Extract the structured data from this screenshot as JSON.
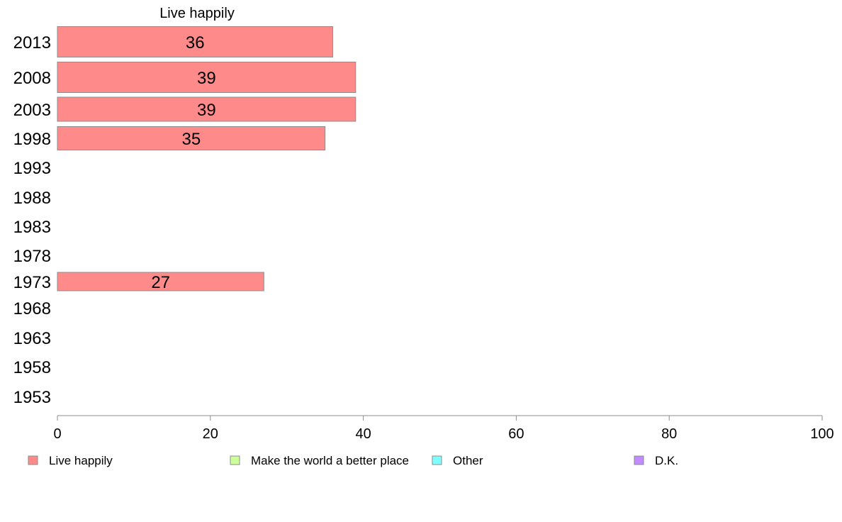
{
  "chart_data": {
    "type": "bar",
    "orientation": "horizontal",
    "stacked": true,
    "title": "Live happily",
    "categories": [
      "2013",
      "2008",
      "2003",
      "1998",
      "1993",
      "1988",
      "1983",
      "1978",
      "1973",
      "1968",
      "1963",
      "1958",
      "1953"
    ],
    "series": [
      {
        "name": "Live happily",
        "color": "#ff8a8a",
        "values": [
          36,
          39,
          39,
          35,
          null,
          null,
          null,
          null,
          27,
          null,
          null,
          null,
          null
        ],
        "labels": [
          "36",
          "39",
          "39",
          "35",
          "",
          "",
          "",
          "",
          "27",
          "",
          "",
          "",
          ""
        ]
      },
      {
        "name": "Make the world a better place",
        "color": "#ccff99",
        "values": [
          null,
          null,
          null,
          null,
          null,
          null,
          null,
          null,
          null,
          null,
          null,
          null,
          null
        ]
      },
      {
        "name": "Other",
        "color": "#80ffff",
        "values": [
          null,
          null,
          null,
          null,
          null,
          null,
          null,
          null,
          null,
          null,
          null,
          null,
          null
        ]
      },
      {
        "name": "D.K.",
        "color": "#c08cff",
        "values": [
          null,
          null,
          null,
          null,
          null,
          null,
          null,
          null,
          null,
          null,
          null,
          null,
          null
        ]
      }
    ],
    "xlim": [
      0,
      100
    ],
    "xticks": [
      0,
      20,
      40,
      60,
      80,
      100
    ],
    "grid": false,
    "legend_position": "bottom"
  }
}
